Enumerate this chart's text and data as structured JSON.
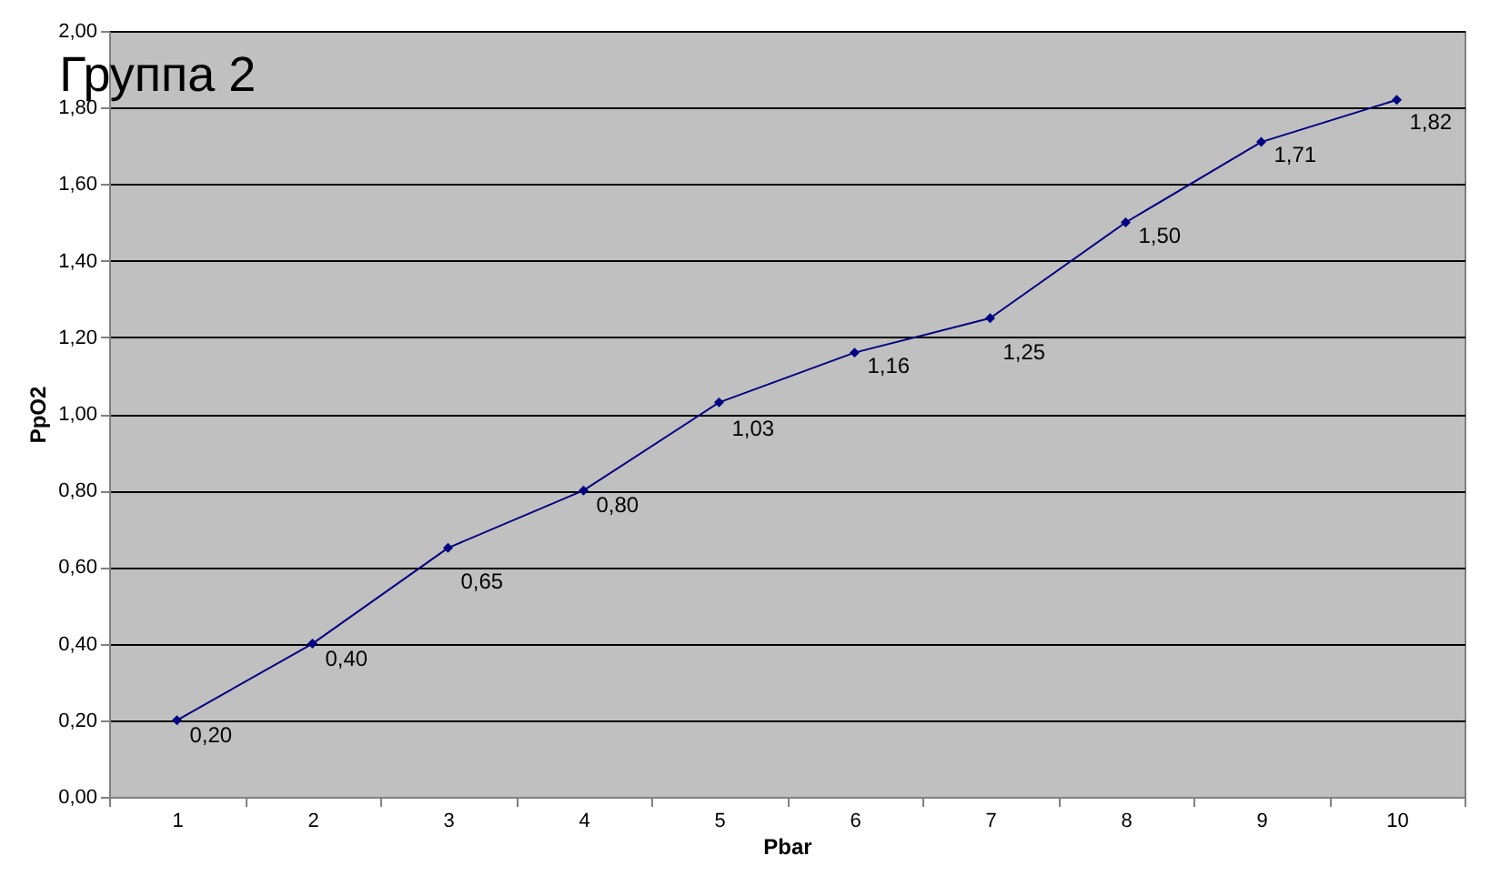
{
  "chart_data": {
    "type": "line",
    "title": "Группа 2",
    "xlabel": "Pbar",
    "ylabel": "PpO2",
    "categories": [
      "1",
      "2",
      "3",
      "4",
      "5",
      "6",
      "7",
      "8",
      "9",
      "10"
    ],
    "series": [
      {
        "color": "#000080",
        "values": [
          0.2,
          0.4,
          0.65,
          0.8,
          1.03,
          1.16,
          1.25,
          1.5,
          1.71,
          1.82
        ],
        "value_labels": [
          "0,20",
          "0,40",
          "0,65",
          "0,80",
          "1,03",
          "1,16",
          "1,25",
          "1,50",
          "1,71",
          "1,82"
        ]
      }
    ],
    "ylim": [
      0,
      2
    ],
    "yticks": [
      {
        "value": 0,
        "label": "0,00"
      },
      {
        "value": 0.2,
        "label": "0,20"
      },
      {
        "value": 0.4,
        "label": "0,40"
      },
      {
        "value": 0.6,
        "label": "0,60"
      },
      {
        "value": 0.8,
        "label": "0,80"
      },
      {
        "value": 1,
        "label": "1,00"
      },
      {
        "value": 1.2,
        "label": "1,20"
      },
      {
        "value": 1.4,
        "label": "1,40"
      },
      {
        "value": 1.6,
        "label": "1,60"
      },
      {
        "value": 1.8,
        "label": "1,80"
      },
      {
        "value": 2,
        "label": "2,00"
      }
    ],
    "grid": "y",
    "legend": false,
    "marker": "diamond",
    "line_style": "solid"
  }
}
